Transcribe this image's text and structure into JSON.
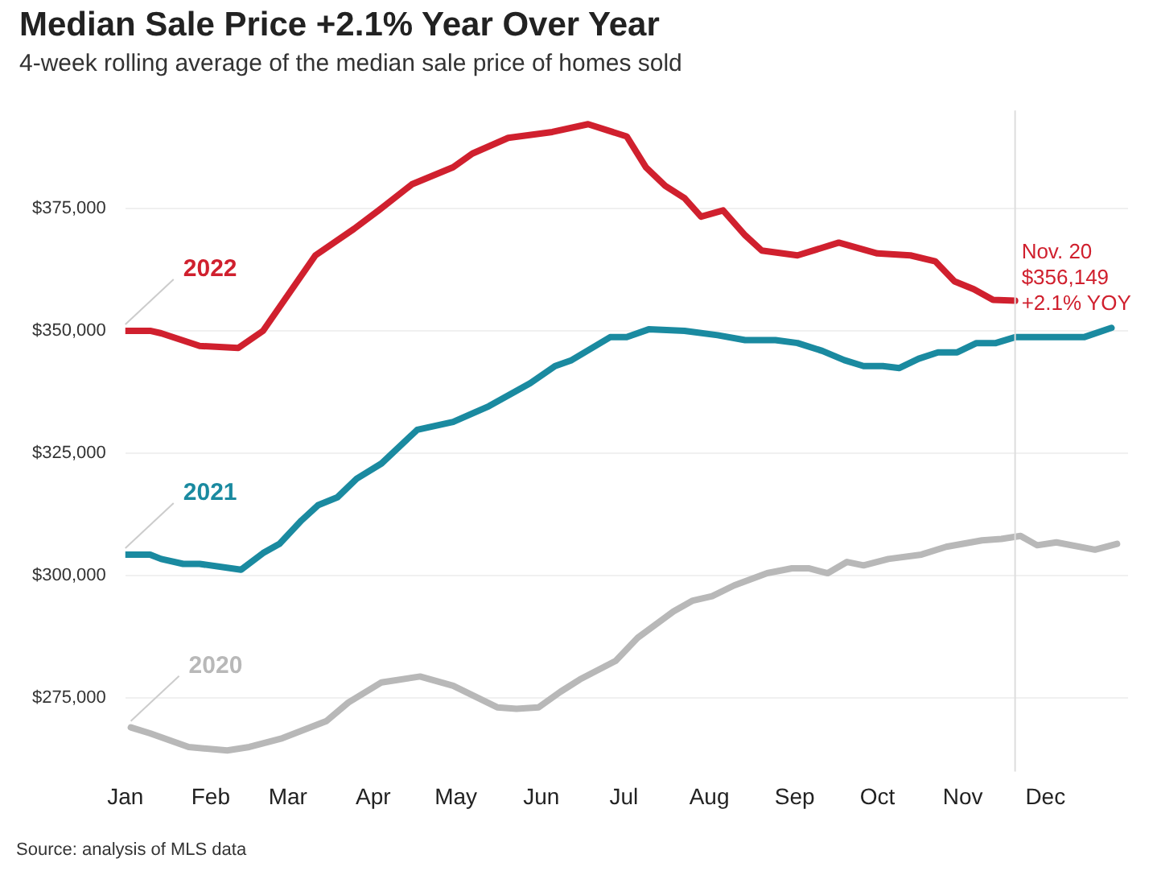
{
  "chart_data": {
    "type": "line",
    "title": "Median Sale Price +2.1% Year Over Year",
    "subtitle": "4-week rolling average of the median sale price of homes sold",
    "annotations": [
      {
        "text": "Nov. 20\n$356,149\n+2.1% YOY",
        "x": "--11-20",
        "y": 356149
      },
      "Source: analysis of MLS data"
    ],
    "series": [
      {
        "name": "2022",
        "color": "#d0202e",
        "x": [
          "--01-01",
          "--01-10",
          "--01-14",
          "--01-28",
          "--02-11",
          "--02-20",
          "--03-11",
          "--03-25",
          "--04-03",
          "--04-15",
          "--04-30",
          "--05-07",
          "--05-20",
          "--06-05",
          "--06-18",
          "--07-02",
          "--07-09",
          "--07-16",
          "--07-23",
          "--07-29",
          "--08-06",
          "--08-14",
          "--08-20",
          "--09-02",
          "--09-17",
          "--10-01",
          "--10-13",
          "--10-22",
          "--10-29",
          "--11-05",
          "--11-12",
          "--11-20"
        ],
        "values": [
          350000,
          350000,
          349500,
          346900,
          346500,
          350000,
          365400,
          370800,
          374600,
          379900,
          383400,
          386200,
          389400,
          390600,
          392200,
          389700,
          383400,
          379600,
          377100,
          373300,
          374600,
          369500,
          366400,
          365400,
          368000,
          365800,
          365400,
          364200,
          360100,
          358500,
          356300,
          356149
        ]
      },
      {
        "name": "2021",
        "color": "#1a8aa0",
        "x": [
          "--01-01",
          "--01-10",
          "--01-14",
          "--01-22",
          "--01-28",
          "--02-12",
          "--02-20",
          "--02-26",
          "--03-06",
          "--03-12",
          "--03-19",
          "--03-26",
          "--04-04",
          "--04-17",
          "--04-30",
          "--05-13",
          "--05-28",
          "--06-06",
          "--06-12",
          "--06-26",
          "--07-02",
          "--07-10",
          "--07-23",
          "--08-04",
          "--08-14",
          "--08-25",
          "--09-02",
          "--09-11",
          "--09-19",
          "--09-26",
          "--10-03",
          "--10-09",
          "--10-16",
          "--10-23",
          "--10-30",
          "--11-06",
          "--11-13",
          "--11-20",
          "--12-15",
          "--12-25"
        ],
        "values": [
          304300,
          304300,
          303400,
          302400,
          302400,
          301200,
          304600,
          306500,
          311300,
          314400,
          316000,
          319800,
          322900,
          329800,
          331400,
          334600,
          339300,
          342800,
          344000,
          348700,
          348700,
          350300,
          350000,
          349100,
          348100,
          348100,
          347500,
          345900,
          344000,
          342800,
          342800,
          342400,
          344300,
          345600,
          345600,
          347500,
          347500,
          348700,
          348700,
          350600
        ]
      },
      {
        "name": "2020",
        "color": "#b8b8b8",
        "x": [
          "--01-03",
          "--01-10",
          "--01-24",
          "--02-07",
          "--02-15",
          "--02-27",
          "--03-15",
          "--03-23",
          "--04-04",
          "--04-18",
          "--04-30",
          "--05-16",
          "--05-23",
          "--05-31",
          "--06-08",
          "--06-15",
          "--06-28",
          "--07-06",
          "--07-19",
          "--07-26",
          "--08-02",
          "--08-10",
          "--08-22",
          "--08-31",
          "--09-06",
          "--09-13",
          "--09-20",
          "--09-26",
          "--10-05",
          "--10-17",
          "--10-26",
          "--11-08",
          "--11-15",
          "--11-22",
          "--11-28",
          "--12-05",
          "--12-19",
          "--12-27"
        ],
        "values": [
          269000,
          267800,
          265000,
          264300,
          265000,
          266800,
          270300,
          274100,
          278200,
          279400,
          277500,
          273100,
          272800,
          273100,
          276300,
          278800,
          282600,
          287300,
          292700,
          294900,
          295800,
          298000,
          300500,
          301500,
          301500,
          300500,
          302800,
          302100,
          303400,
          304300,
          305900,
          307200,
          307500,
          308100,
          306200,
          306800,
          305300,
          306500
        ]
      }
    ],
    "xlim": [
      "--01-01",
      "--12-31"
    ],
    "xticks": [
      {
        "value": "--01-01",
        "label": "Jan"
      },
      {
        "value": "--02-01",
        "label": "Feb"
      },
      {
        "value": "--03-01",
        "label": "Mar"
      },
      {
        "value": "--04-01",
        "label": "Apr"
      },
      {
        "value": "--05-01",
        "label": "May"
      },
      {
        "value": "--06-01",
        "label": "Jun"
      },
      {
        "value": "--07-01",
        "label": "Jul"
      },
      {
        "value": "--08-01",
        "label": "Aug"
      },
      {
        "value": "--09-01",
        "label": "Sep"
      },
      {
        "value": "--10-01",
        "label": "Oct"
      },
      {
        "value": "--11-01",
        "label": "Nov"
      },
      {
        "value": "--12-01",
        "label": "Dec"
      }
    ],
    "ylim": [
      260000,
      395000
    ],
    "yticks": [
      {
        "value": 275000,
        "label": "$275,000"
      },
      {
        "value": 300000,
        "label": "$300,000"
      },
      {
        "value": 325000,
        "label": "$325,000"
      },
      {
        "value": 350000,
        "label": "$350,000"
      },
      {
        "value": 375000,
        "label": "$375,000"
      }
    ],
    "ref_lines": [
      {
        "axis": "x",
        "value": "--11-20",
        "color": "#dddddd"
      }
    ],
    "grid": "y",
    "legend": false,
    "marker": "none",
    "line_style": "solid"
  }
}
